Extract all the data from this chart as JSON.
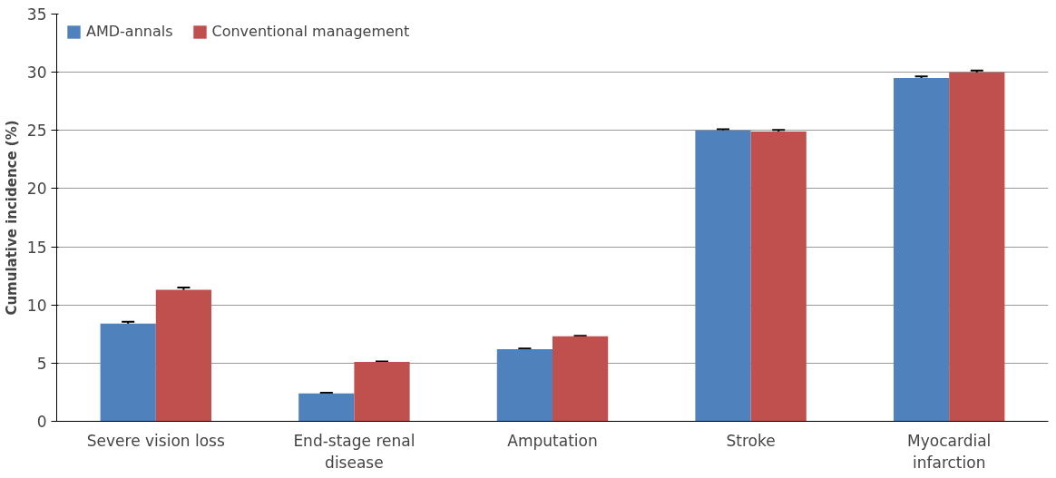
{
  "chart_data": {
    "type": "bar",
    "ylabel": "Cumulative incidence (%)",
    "categories": [
      "Severe vision loss",
      "End-stage renal disease",
      "Amputation",
      "Stroke",
      "Myocardial infarction"
    ],
    "series": [
      {
        "name": "AMD-annals",
        "color": "#4f81bd",
        "values": [
          8.4,
          2.4,
          6.2,
          25.0,
          29.5
        ],
        "errors": [
          0.15,
          0.05,
          0.05,
          0.1,
          0.15
        ]
      },
      {
        "name": "Conventional management",
        "color": "#c0504d",
        "values": [
          11.3,
          5.1,
          7.3,
          24.9,
          30.0
        ],
        "errors": [
          0.2,
          0.05,
          0.05,
          0.15,
          0.15
        ]
      }
    ],
    "ylim": [
      0,
      35
    ],
    "yticks": [
      0,
      5,
      10,
      15,
      20,
      25,
      30,
      35
    ],
    "grid": "y",
    "legend": "top left"
  }
}
